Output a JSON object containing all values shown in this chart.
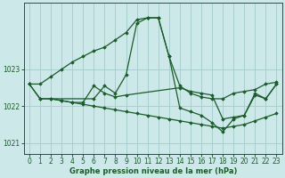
{
  "bg_color": "#cce8e8",
  "grid_color": "#aacece",
  "line_color": "#1a5c2a",
  "title": "Graphe pression niveau de la mer (hPa)",
  "xlim": [
    -0.5,
    23.5
  ],
  "ylim": [
    1020.7,
    1024.8
  ],
  "yticks": [
    1021,
    1022,
    1023
  ],
  "xticks": [
    0,
    1,
    2,
    3,
    4,
    5,
    6,
    7,
    8,
    9,
    10,
    11,
    12,
    13,
    14,
    15,
    16,
    17,
    18,
    19,
    20,
    21,
    22,
    23
  ],
  "series": [
    {
      "x": [
        0,
        1,
        2,
        3,
        4,
        5,
        6,
        7,
        8,
        9,
        10,
        11,
        12,
        13,
        14,
        15,
        16,
        17,
        18,
        19,
        20,
        21,
        22,
        23
      ],
      "y": [
        1022.6,
        1022.6,
        1022.8,
        1023.0,
        1023.2,
        1023.35,
        1023.5,
        1023.6,
        1023.8,
        1024.0,
        1024.35,
        1024.4,
        1024.4,
        1023.35,
        1022.55,
        1022.35,
        1022.25,
        1022.2,
        1022.2,
        1022.35,
        1022.4,
        1022.45,
        1022.6,
        1022.65
      ]
    },
    {
      "x": [
        0,
        1,
        6,
        7,
        8,
        9,
        10,
        11,
        12,
        13,
        14,
        15,
        16,
        17,
        18,
        19,
        20,
        21,
        22,
        23
      ],
      "y": [
        1022.6,
        1022.2,
        1022.2,
        1022.55,
        1022.35,
        1022.85,
        1024.25,
        1024.4,
        1024.4,
        1023.35,
        1021.95,
        1021.85,
        1021.75,
        1021.55,
        1021.3,
        1021.65,
        1021.75,
        1022.3,
        1022.2,
        1022.6
      ]
    },
    {
      "x": [
        0,
        1,
        2,
        3,
        4,
        5,
        6,
        7,
        8,
        9,
        10,
        11,
        12,
        13,
        14,
        15,
        16,
        17,
        18,
        19,
        20,
        21,
        22,
        23
      ],
      "y": [
        1022.6,
        1022.2,
        1022.2,
        1022.15,
        1022.1,
        1022.05,
        1022.0,
        1021.95,
        1021.9,
        1021.85,
        1021.8,
        1021.75,
        1021.7,
        1021.65,
        1021.6,
        1021.55,
        1021.5,
        1021.45,
        1021.4,
        1021.45,
        1021.5,
        1021.6,
        1021.7,
        1021.8
      ]
    },
    {
      "x": [
        2,
        3,
        4,
        5,
        6,
        7,
        8,
        9,
        14,
        15,
        16,
        17,
        18,
        19,
        20,
        21,
        22,
        23
      ],
      "y": [
        1022.2,
        1022.15,
        1022.1,
        1022.1,
        1022.55,
        1022.35,
        1022.25,
        1022.3,
        1022.5,
        1022.4,
        1022.35,
        1022.3,
        1021.65,
        1021.7,
        1021.75,
        1022.35,
        1022.2,
        1022.6
      ]
    }
  ]
}
